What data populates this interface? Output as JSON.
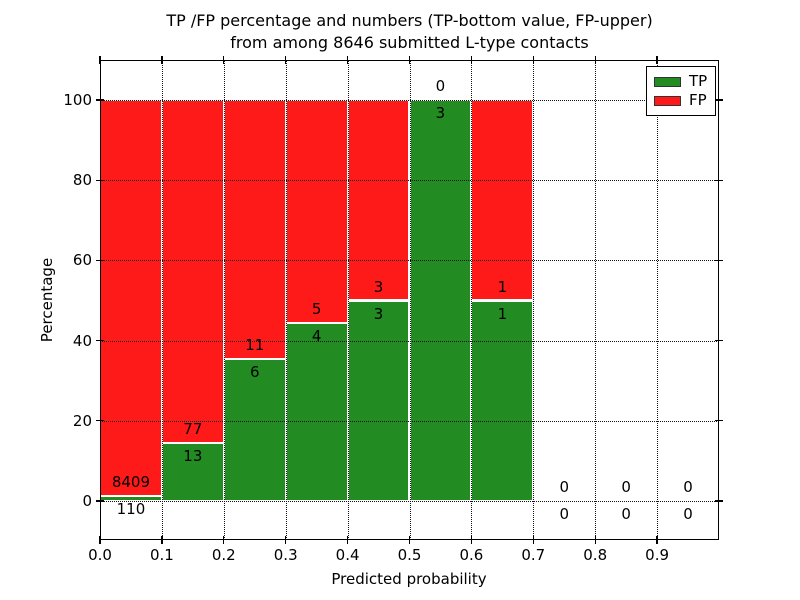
{
  "figure": {
    "title_line1": "TP /FP percentage and numbers (TP-bottom value, FP-upper)",
    "title_line2": "from among 8646 submitted L-type contacts"
  },
  "axes": {
    "xlabel": "Predicted probability",
    "ylabel": "Percentage"
  },
  "legend": {
    "items": [
      {
        "label": "TP",
        "color": "#228b22"
      },
      {
        "label": "FP",
        "color": "#ff1a1a"
      }
    ]
  },
  "chart_data": {
    "type": "bar",
    "stacked": true,
    "title": "TP /FP percentage and numbers (TP-bottom value, FP-upper) from among 8646 submitted L-type contacts",
    "xlabel": "Predicted probability",
    "ylabel": "Percentage",
    "xlim": [
      0.0,
      1.0
    ],
    "ylim": [
      -9.75,
      110.0
    ],
    "grid": "dotted",
    "legend_position": "upper-right",
    "bin_width": 0.1,
    "bin_starts": [
      0.0,
      0.1,
      0.2,
      0.3,
      0.4,
      0.5,
      0.6,
      0.7,
      0.8,
      0.9
    ],
    "categories": [
      "0.0-0.1",
      "0.1-0.2",
      "0.2-0.3",
      "0.3-0.4",
      "0.4-0.5",
      "0.5-0.6",
      "0.6-0.7",
      "0.7-0.8",
      "0.8-0.9",
      "0.9-1.0"
    ],
    "x_ticks": {
      "values": [
        0.0,
        0.1,
        0.2,
        0.3,
        0.4,
        0.5,
        0.6,
        0.7,
        0.8,
        0.9
      ],
      "labels": [
        "0.0",
        "0.1",
        "0.2",
        "0.3",
        "0.4",
        "0.5",
        "0.6",
        "0.7",
        "0.8",
        "0.9"
      ]
    },
    "y_ticks": {
      "values": [
        0,
        20,
        40,
        60,
        80,
        100
      ],
      "labels": [
        "0",
        "20",
        "40",
        "60",
        "80",
        "100"
      ]
    },
    "series": [
      {
        "name": "TP",
        "color": "#228b22",
        "counts": [
          110,
          13,
          6,
          4,
          3,
          3,
          1,
          0,
          0,
          0
        ],
        "pct_of_bin": [
          1.2913,
          14.4444,
          35.2941,
          44.4444,
          50.0,
          100.0,
          50.0,
          0.0,
          0.0,
          0.0
        ]
      },
      {
        "name": "FP",
        "color": "#ff1a1a",
        "counts": [
          8409,
          77,
          11,
          5,
          3,
          0,
          1,
          0,
          0,
          0
        ],
        "pct_of_bin": [
          98.7087,
          85.5556,
          64.7059,
          55.5556,
          50.0,
          0.0,
          50.0,
          0.0,
          0.0,
          0.0
        ]
      }
    ],
    "bar_total_pct": 100,
    "total_submitted": 8646
  }
}
